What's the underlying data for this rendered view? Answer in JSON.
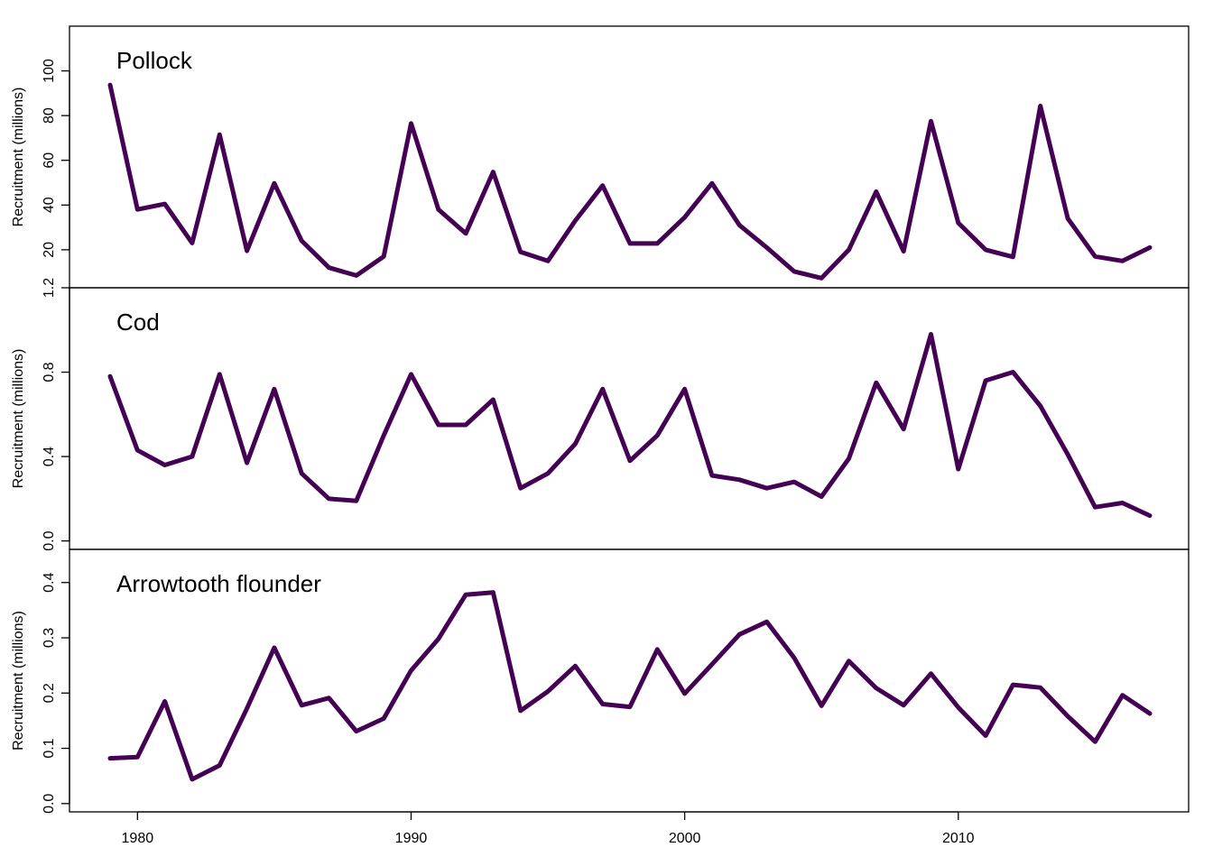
{
  "chart_data": {
    "type": "line",
    "color": "#440154",
    "x": [
      1979,
      1980,
      1981,
      1982,
      1983,
      1984,
      1985,
      1986,
      1987,
      1988,
      1989,
      1990,
      1991,
      1992,
      1993,
      1994,
      1995,
      1996,
      1997,
      1998,
      1999,
      2000,
      2001,
      2002,
      2003,
      2004,
      2005,
      2006,
      2007,
      2008,
      2009,
      2010,
      2011,
      2012,
      2013,
      2014,
      2015,
      2016,
      2017
    ],
    "xlim": [
      1979,
      2017
    ],
    "xticks": [
      1980,
      1990,
      2000,
      2010
    ],
    "xtick_labels": [
      "1980",
      "1990",
      "2000",
      "2010"
    ],
    "panels": [
      {
        "title": "Pollock",
        "ylabel": "Recruitment (millions)",
        "ylim": [
          3,
          120
        ],
        "yticks": [
          20,
          40,
          60,
          80,
          100
        ],
        "ytick_labels": [
          "20",
          "40",
          "60",
          "80",
          "100"
        ],
        "values": [
          93.7,
          38,
          40.5,
          23,
          71.5,
          19.5,
          49.7,
          24,
          12,
          8.5,
          17,
          76.5,
          38,
          27.3,
          54.8,
          19,
          15,
          33,
          48.7,
          22.8,
          22.8,
          34.5,
          49.7,
          31,
          21,
          10.3,
          7.3,
          20,
          46,
          19.3,
          77.5,
          32,
          20,
          16.8,
          84.3,
          34,
          17,
          15,
          21
        ]
      },
      {
        "title": "Cod",
        "ylabel": "Recruitment (millions)",
        "ylim": [
          -0.04,
          1.2
        ],
        "yticks": [
          0,
          0.4,
          0.8,
          1.2
        ],
        "ytick_labels": [
          "0.0",
          "0.4",
          "0.8",
          "1.2"
        ],
        "values": [
          0.78,
          0.43,
          0.36,
          0.4,
          0.79,
          0.37,
          0.72,
          0.32,
          0.2,
          0.19,
          0.5,
          0.79,
          0.55,
          0.55,
          0.67,
          0.25,
          0.32,
          0.46,
          0.72,
          0.38,
          0.5,
          0.72,
          0.31,
          0.29,
          0.25,
          0.28,
          0.21,
          0.39,
          0.75,
          0.53,
          0.98,
          0.34,
          0.76,
          0.8,
          0.64,
          0.41,
          0.16,
          0.18,
          0.12
        ]
      },
      {
        "title": "Arrowtooth flounder",
        "ylabel": "Recruitment (millions)",
        "ylim": [
          -0.015,
          0.46
        ],
        "yticks": [
          0,
          0.1,
          0.2,
          0.3,
          0.4
        ],
        "ytick_labels": [
          "0.0",
          "0.1",
          "0.2",
          "0.3",
          "0.4"
        ],
        "values": [
          0.082,
          0.084,
          0.185,
          0.044,
          0.069,
          0.172,
          0.282,
          0.178,
          0.191,
          0.131,
          0.154,
          0.241,
          0.298,
          0.378,
          0.382,
          0.168,
          0.203,
          0.249,
          0.18,
          0.175,
          0.279,
          0.199,
          0.252,
          0.306,
          0.329,
          0.264,
          0.177,
          0.258,
          0.209,
          0.178,
          0.235,
          0.174,
          0.123,
          0.215,
          0.21,
          0.158,
          0.112,
          0.196,
          0.163
        ]
      }
    ]
  }
}
